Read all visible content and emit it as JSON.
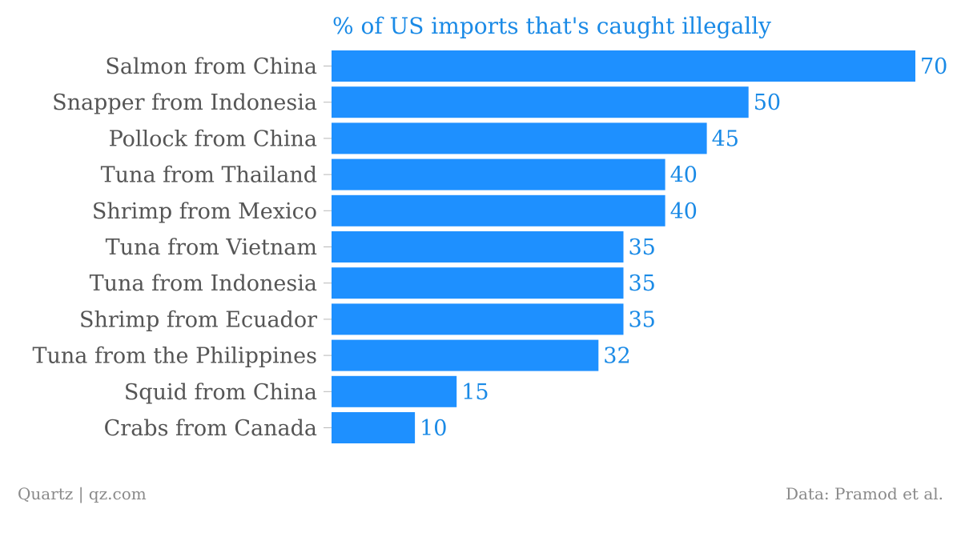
{
  "chart_data": {
    "type": "bar",
    "orientation": "horizontal",
    "title": "% of US imports that's caught illegally",
    "categories": [
      "Salmon from China",
      "Snapper from Indonesia",
      "Pollock from China",
      "Tuna from Thailand",
      "Shrimp from Mexico",
      "Tuna from Vietnam",
      "Tuna from Indonesia",
      "Shrimp from Ecuador",
      "Tuna from the Philippines",
      "Squid from China",
      "Crabs from Canada"
    ],
    "values": [
      70,
      50,
      45,
      40,
      40,
      35,
      35,
      35,
      32,
      15,
      10
    ],
    "xlim": [
      0,
      70
    ],
    "xlabel": "",
    "ylabel": "",
    "grid": false,
    "legend": "none",
    "bar_color": "#1e90ff",
    "value_label_color": "#1a8ae6"
  },
  "footer": {
    "source_left": "Quartz | qz.com",
    "source_right": "Data: Pramod et al."
  }
}
